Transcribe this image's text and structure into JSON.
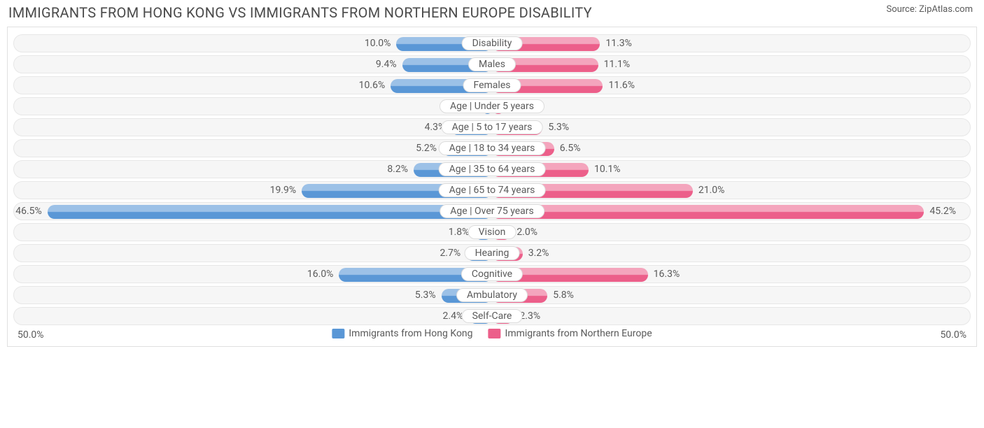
{
  "title": "IMMIGRANTS FROM HONG KONG VS IMMIGRANTS FROM NORTHERN EUROPE DISABILITY",
  "source": "Source: ZipAtlas.com",
  "chart": {
    "type": "diverging-bar",
    "max_percent": 50.0,
    "axis_left_label": "50.0%",
    "axis_right_label": "50.0%",
    "row_bg": "#f6f6f6",
    "row_border": "#e7e7e7",
    "text_color": "#5a5a5a",
    "label_fontsize": 14,
    "title_fontsize": 20,
    "series": [
      {
        "name": "Immigrants from Hong Kong",
        "color_light": "#9cc1e7",
        "color_dark": "#5a97d6"
      },
      {
        "name": "Immigrants from Northern Europe",
        "color_light": "#f4a5bd",
        "color_dark": "#ec5f8a"
      }
    ],
    "rows": [
      {
        "label": "Disability",
        "left_val": 10.0,
        "left_str": "10.0%",
        "right_val": 11.3,
        "right_str": "11.3%"
      },
      {
        "label": "Males",
        "left_val": 9.4,
        "left_str": "9.4%",
        "right_val": 11.1,
        "right_str": "11.1%"
      },
      {
        "label": "Females",
        "left_val": 10.6,
        "left_str": "10.6%",
        "right_val": 11.6,
        "right_str": "11.6%"
      },
      {
        "label": "Age | Under 5 years",
        "left_val": 0.95,
        "left_str": "0.95%",
        "right_val": 1.3,
        "right_str": "1.3%"
      },
      {
        "label": "Age | 5 to 17 years",
        "left_val": 4.3,
        "left_str": "4.3%",
        "right_val": 5.3,
        "right_str": "5.3%"
      },
      {
        "label": "Age | 18 to 34 years",
        "left_val": 5.2,
        "left_str": "5.2%",
        "right_val": 6.5,
        "right_str": "6.5%"
      },
      {
        "label": "Age | 35 to 64 years",
        "left_val": 8.2,
        "left_str": "8.2%",
        "right_val": 10.1,
        "right_str": "10.1%"
      },
      {
        "label": "Age | 65 to 74 years",
        "left_val": 19.9,
        "left_str": "19.9%",
        "right_val": 21.0,
        "right_str": "21.0%"
      },
      {
        "label": "Age | Over 75 years",
        "left_val": 46.5,
        "left_str": "46.5%",
        "right_val": 45.2,
        "right_str": "45.2%"
      },
      {
        "label": "Vision",
        "left_val": 1.8,
        "left_str": "1.8%",
        "right_val": 2.0,
        "right_str": "2.0%"
      },
      {
        "label": "Hearing",
        "left_val": 2.7,
        "left_str": "2.7%",
        "right_val": 3.2,
        "right_str": "3.2%"
      },
      {
        "label": "Cognitive",
        "left_val": 16.0,
        "left_str": "16.0%",
        "right_val": 16.3,
        "right_str": "16.3%"
      },
      {
        "label": "Ambulatory",
        "left_val": 5.3,
        "left_str": "5.3%",
        "right_val": 5.8,
        "right_str": "5.8%"
      },
      {
        "label": "Self-Care",
        "left_val": 2.4,
        "left_str": "2.4%",
        "right_val": 2.3,
        "right_str": "2.3%"
      }
    ]
  }
}
